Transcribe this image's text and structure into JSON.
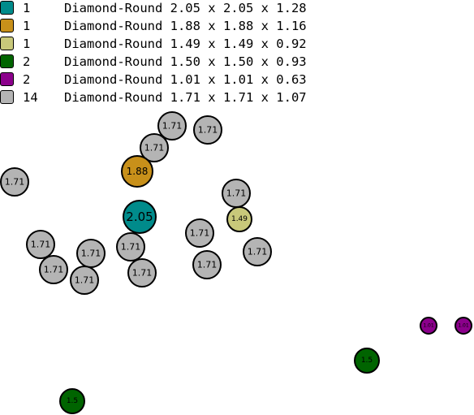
{
  "legend": {
    "items": [
      {
        "count": "1",
        "desc": "Diamond-Round 2.05 x 2.05 x 1.28",
        "color": "#008b8b"
      },
      {
        "count": "1",
        "desc": "Diamond-Round 1.88 x 1.88 x 1.16",
        "color": "#c8901a"
      },
      {
        "count": "1",
        "desc": "Diamond-Round 1.49 x 1.49 x 0.92",
        "color": "#c8c87a"
      },
      {
        "count": "2",
        "desc": "Diamond-Round 1.50 x 1.50 x 0.93",
        "color": "#006400"
      },
      {
        "count": "2",
        "desc": "Diamond-Round 1.01 x 1.01 x 0.63",
        "color": "#8b008b"
      },
      {
        "count": "14",
        "desc": "Diamond-Round 1.71 x 1.71 x 1.07",
        "color": "#b4b4b4"
      }
    ]
  },
  "stones": [
    {
      "label": "1.71",
      "color": "#b4b4b4"
    },
    {
      "label": "1.71",
      "color": "#b4b4b4"
    },
    {
      "label": "1.71",
      "color": "#b4b4b4"
    },
    {
      "label": "1.88",
      "color": "#c8901a"
    },
    {
      "label": "1.71",
      "color": "#b4b4b4"
    },
    {
      "label": "1.71",
      "color": "#b4b4b4"
    },
    {
      "label": "2.05",
      "color": "#008b8b"
    },
    {
      "label": "1.49",
      "color": "#c8c87a"
    },
    {
      "label": "1.71",
      "color": "#b4b4b4"
    },
    {
      "label": "1.71",
      "color": "#b4b4b4"
    },
    {
      "label": "1.71",
      "color": "#b4b4b4"
    },
    {
      "label": "1.71",
      "color": "#b4b4b4"
    },
    {
      "label": "1.71",
      "color": "#b4b4b4"
    },
    {
      "label": "1.71",
      "color": "#b4b4b4"
    },
    {
      "label": "1.71",
      "color": "#b4b4b4"
    },
    {
      "label": "1.71",
      "color": "#b4b4b4"
    },
    {
      "label": "1.71",
      "color": "#b4b4b4"
    },
    {
      "label": "1.01",
      "color": "#8b008b"
    },
    {
      "label": "1.01",
      "color": "#8b008b"
    },
    {
      "label": "1.5",
      "color": "#006400"
    },
    {
      "label": "1.5",
      "color": "#006400"
    }
  ]
}
